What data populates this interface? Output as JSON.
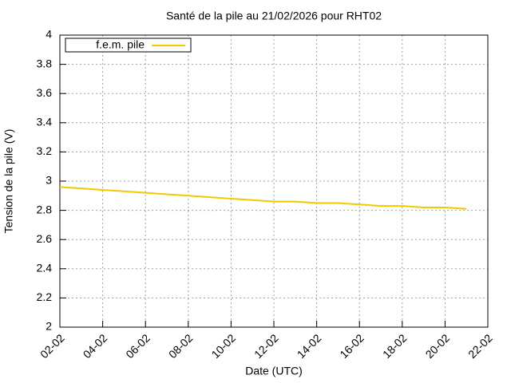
{
  "chart_data": {
    "type": "line",
    "title": "Santé de la pile au 21/02/2026 pour RHT02",
    "x_label": "Date (UTC)",
    "y_label": "Tension de la pile (V)",
    "x": [
      2,
      3,
      4,
      5,
      6,
      7,
      8,
      9,
      10,
      11,
      12,
      13,
      14,
      15,
      16,
      17,
      18,
      19,
      20,
      21
    ],
    "series": [
      {
        "name": "f.e.m. pile",
        "color": "#f5c800",
        "values": [
          2.96,
          2.95,
          2.94,
          2.93,
          2.92,
          2.91,
          2.9,
          2.89,
          2.88,
          2.87,
          2.86,
          2.86,
          2.85,
          2.85,
          2.84,
          2.83,
          2.83,
          2.82,
          2.82,
          2.81
        ]
      }
    ],
    "xlim": [
      2,
      22
    ],
    "xticks": [
      {
        "value": 2,
        "label": "02-02"
      },
      {
        "value": 4,
        "label": "04-02"
      },
      {
        "value": 6,
        "label": "06-02"
      },
      {
        "value": 8,
        "label": "08-02"
      },
      {
        "value": 10,
        "label": "10-02"
      },
      {
        "value": 12,
        "label": "12-02"
      },
      {
        "value": 14,
        "label": "14-02"
      },
      {
        "value": 16,
        "label": "16-02"
      },
      {
        "value": 18,
        "label": "18-02"
      },
      {
        "value": 20,
        "label": "20-02"
      },
      {
        "value": 22,
        "label": "22-02"
      }
    ],
    "ylim": [
      2,
      4
    ],
    "yticks": [
      2,
      2.2,
      2.4,
      2.6,
      2.8,
      3,
      3.2,
      3.4,
      3.6,
      3.8,
      4
    ],
    "grid": true,
    "legend": "top-left"
  }
}
